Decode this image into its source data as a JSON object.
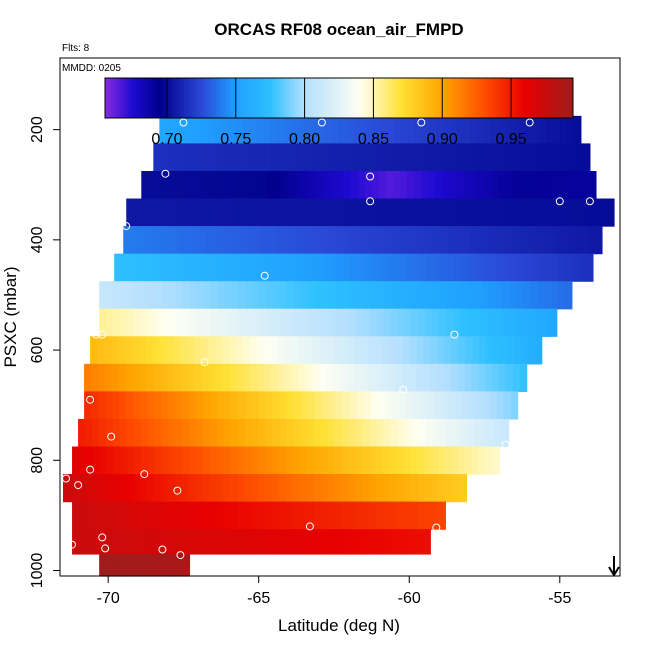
{
  "chart_data": {
    "type": "heatmap",
    "title": "ORCAS RF08 ocean_air_FMPD",
    "flights_note": "Flts: 8",
    "date_note": "MMDD: 0205",
    "xlabel": "Latitude (deg N)",
    "ylabel": "PSXC (mbar)",
    "xlim": [
      -71.6,
      -53.0
    ],
    "ylim": [
      1010,
      70
    ],
    "x_ticks": [
      -70,
      -65,
      -60,
      -55
    ],
    "x_tick_labels": [
      "-70",
      "-65",
      "-60",
      "-55"
    ],
    "y_ticks": [
      200,
      400,
      600,
      800,
      1000
    ],
    "y_tick_labels": [
      "200",
      "400",
      "600",
      "800",
      "1000"
    ],
    "colorbar": {
      "range": [
        0.655,
        0.995
      ],
      "ticks": [
        0.7,
        0.75,
        0.8,
        0.85,
        0.9,
        0.95
      ],
      "tick_labels": [
        "0.70",
        "0.75",
        "0.80",
        "0.85",
        "0.90",
        "0.95"
      ],
      "stops": [
        {
          "v": 0.655,
          "color": "#8a2be2"
        },
        {
          "v": 0.675,
          "color": "#1e0ad2"
        },
        {
          "v": 0.695,
          "color": "#00008b"
        },
        {
          "v": 0.725,
          "color": "#2a47d6"
        },
        {
          "v": 0.75,
          "color": "#1fa0ff"
        },
        {
          "v": 0.775,
          "color": "#2dc0ff"
        },
        {
          "v": 0.8,
          "color": "#b3dfff"
        },
        {
          "v": 0.84,
          "color": "#fffff2"
        },
        {
          "v": 0.87,
          "color": "#ffe135"
        },
        {
          "v": 0.9,
          "color": "#ffa500"
        },
        {
          "v": 0.93,
          "color": "#ff5000"
        },
        {
          "v": 0.96,
          "color": "#e80000"
        },
        {
          "v": 0.995,
          "color": "#a01c1c"
        }
      ]
    },
    "bands": [
      {
        "p_top": 175,
        "p_bot": 225,
        "x_min": -68.3,
        "x_max": -54.3,
        "v_left": 0.755,
        "v_right": 0.7
      },
      {
        "p_top": 225,
        "p_bot": 275,
        "x_min": -68.5,
        "x_max": -54.0,
        "v_left": 0.715,
        "v_right": 0.7
      },
      {
        "p_top": 275,
        "p_bot": 325,
        "x_min": -68.9,
        "x_max": -53.8,
        "v_left": 0.7,
        "v_right": 0.69,
        "v_mid": 0.665
      },
      {
        "p_top": 325,
        "p_bot": 375,
        "x_min": -69.4,
        "x_max": -53.2,
        "v_left": 0.705,
        "v_right": 0.7
      },
      {
        "p_top": 375,
        "p_bot": 425,
        "x_min": -69.5,
        "x_max": -53.6,
        "v_left": 0.74,
        "v_right": 0.705
      },
      {
        "p_top": 425,
        "p_bot": 475,
        "x_min": -69.8,
        "x_max": -53.9,
        "v_left": 0.775,
        "v_right": 0.715
      },
      {
        "p_top": 475,
        "p_bot": 525,
        "x_min": -70.3,
        "x_max": -54.6,
        "v_left": 0.81,
        "v_right": 0.735
      },
      {
        "p_top": 525,
        "p_bot": 575,
        "x_min": -70.3,
        "x_max": -55.1,
        "v_left": 0.855,
        "v_right": 0.755
      },
      {
        "p_top": 575,
        "p_bot": 625,
        "x_min": -70.6,
        "x_max": -55.6,
        "v_left": 0.89,
        "v_right": 0.76
      },
      {
        "p_top": 625,
        "p_bot": 675,
        "x_min": -70.8,
        "x_max": -56.1,
        "v_left": 0.915,
        "v_right": 0.775
      },
      {
        "p_top": 675,
        "p_bot": 725,
        "x_min": -70.8,
        "x_max": -56.4,
        "v_left": 0.945,
        "v_right": 0.79
      },
      {
        "p_top": 725,
        "p_bot": 775,
        "x_min": -71.0,
        "x_max": -56.7,
        "v_left": 0.95,
        "v_right": 0.81
      },
      {
        "p_top": 775,
        "p_bot": 825,
        "x_min": -71.2,
        "x_max": -57.0,
        "v_left": 0.965,
        "v_right": 0.845
      },
      {
        "p_top": 825,
        "p_bot": 875,
        "x_min": -71.5,
        "x_max": -58.1,
        "v_left": 0.975,
        "v_right": 0.88
      },
      {
        "p_top": 875,
        "p_bot": 925,
        "x_min": -71.2,
        "x_max": -58.8,
        "v_left": 0.975,
        "v_right": 0.935
      },
      {
        "p_top": 925,
        "p_bot": 970,
        "x_min": -71.2,
        "x_max": -59.3,
        "v_left": 0.975,
        "v_right": 0.955
      },
      {
        "p_top": 970,
        "p_bot": 1010,
        "x_min": -70.3,
        "x_max": -67.3,
        "v_left": 0.995,
        "v_right": 0.99
      }
    ],
    "points": [
      [
        -67.5,
        187
      ],
      [
        -62.9,
        187
      ],
      [
        -59.6,
        187
      ],
      [
        -56.0,
        187
      ],
      [
        -68.1,
        280
      ],
      [
        -61.3,
        285
      ],
      [
        -61.3,
        330
      ],
      [
        -55.0,
        330
      ],
      [
        -54.0,
        330
      ],
      [
        -69.4,
        375
      ],
      [
        -64.8,
        465
      ],
      [
        -70.1,
        468
      ],
      [
        -70.4,
        572
      ],
      [
        -70.2,
        572
      ],
      [
        -58.5,
        572
      ],
      [
        -66.8,
        622
      ],
      [
        -70.6,
        690
      ],
      [
        -60.2,
        672
      ],
      [
        -69.9,
        757
      ],
      [
        -56.8,
        772
      ],
      [
        -70.6,
        817
      ],
      [
        -68.8,
        825
      ],
      [
        -71.4,
        833
      ],
      [
        -71.0,
        845
      ],
      [
        -67.7,
        855
      ],
      [
        -63.3,
        920
      ],
      [
        -59.1,
        922
      ],
      [
        -70.2,
        940
      ],
      [
        -71.2,
        953
      ],
      [
        -70.1,
        960
      ],
      [
        -68.2,
        962
      ],
      [
        -67.6,
        972
      ]
    ],
    "arrow": {
      "x": -53.2,
      "direction": "down"
    }
  }
}
